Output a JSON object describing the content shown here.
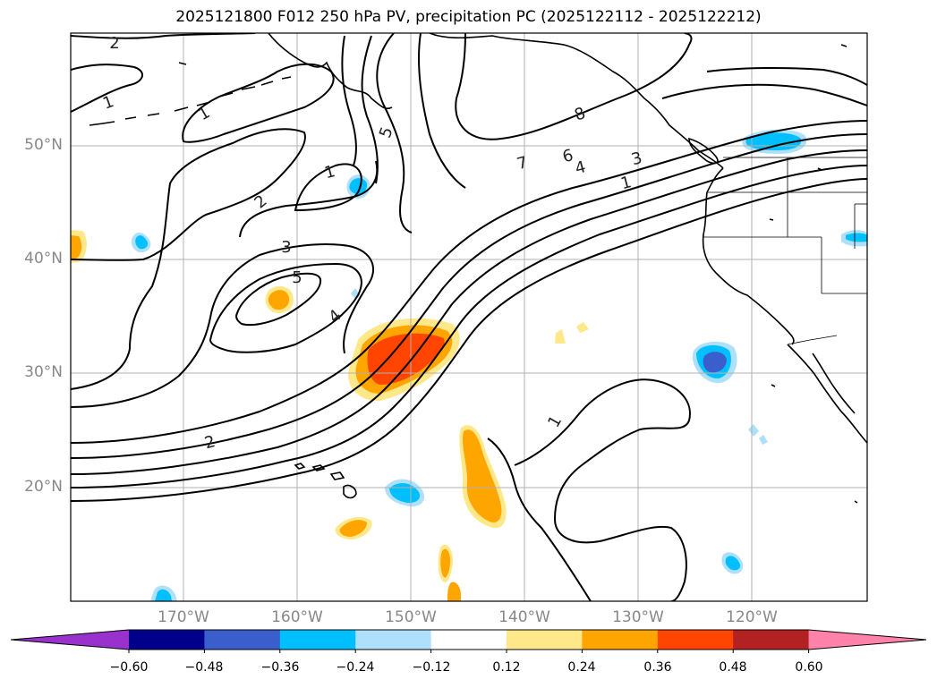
{
  "title": "2025121800 F012 250 hPa PV, precipitation PC (2025122112 - 2025122212)",
  "map": {
    "lat_labels": [
      {
        "label": "50°N",
        "lat": 50
      },
      {
        "label": "40°N",
        "lat": 40
      },
      {
        "label": "30°N",
        "lat": 30
      },
      {
        "label": "20°N",
        "lat": 20
      }
    ],
    "lon_labels": [
      {
        "label": "170°W",
        "lon": -170
      },
      {
        "label": "160°W",
        "lon": -160
      },
      {
        "label": "150°W",
        "lon": -150
      },
      {
        "label": "140°W",
        "lon": -140
      },
      {
        "label": "130°W",
        "lon": -130
      },
      {
        "label": "120°W",
        "lon": -120
      }
    ],
    "pv_contour_labels": [
      "1",
      "1",
      "1",
      "1",
      "2",
      "2",
      "2",
      "3",
      "3",
      "4",
      "4",
      "5",
      "5",
      "6",
      "7",
      "8"
    ]
  },
  "colorbar": {
    "ticks": [
      "−0.60",
      "−0.48",
      "−0.36",
      "−0.24",
      "−0.12",
      "0.12",
      "0.24",
      "0.36",
      "0.48",
      "0.60"
    ],
    "colors": [
      "#9932cc",
      "#00008b",
      "#3a5fcd",
      "#00bfff",
      "#afe0fa",
      "#ffffff",
      "#ffe88a",
      "#ffa500",
      "#ff4500",
      "#b22222",
      "#ff82ab"
    ]
  }
}
